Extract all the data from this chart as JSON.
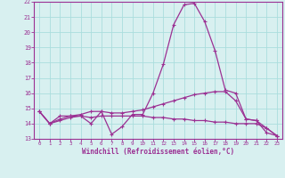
{
  "x_values": [
    0,
    1,
    2,
    3,
    4,
    5,
    6,
    7,
    8,
    9,
    10,
    11,
    12,
    13,
    14,
    15,
    16,
    17,
    18,
    19,
    20,
    21,
    22,
    23
  ],
  "line1": [
    14.8,
    14.0,
    14.5,
    14.5,
    14.5,
    14.0,
    14.8,
    13.3,
    13.8,
    14.6,
    14.6,
    16.0,
    17.9,
    20.5,
    21.8,
    21.9,
    20.7,
    18.8,
    16.2,
    16.0,
    14.3,
    14.2,
    13.4,
    13.2
  ],
  "line2": [
    14.8,
    14.0,
    14.3,
    14.5,
    14.6,
    14.8,
    14.8,
    14.7,
    14.7,
    14.8,
    14.9,
    15.1,
    15.3,
    15.5,
    15.7,
    15.9,
    16.0,
    16.1,
    16.1,
    15.5,
    14.3,
    14.2,
    13.7,
    13.2
  ],
  "line3": [
    14.8,
    14.0,
    14.2,
    14.4,
    14.5,
    14.4,
    14.5,
    14.5,
    14.5,
    14.5,
    14.5,
    14.4,
    14.4,
    14.3,
    14.3,
    14.2,
    14.2,
    14.1,
    14.1,
    14.0,
    14.0,
    14.0,
    13.7,
    13.2
  ],
  "color": "#9b3093",
  "bg_color": "#d8f0f0",
  "grid_color": "#aadddd",
  "xlabel": "Windchill (Refroidissement éolien,°C)",
  "xlim": [
    -0.5,
    23.5
  ],
  "ylim": [
    13,
    22
  ],
  "yticks": [
    13,
    14,
    15,
    16,
    17,
    18,
    19,
    20,
    21,
    22
  ],
  "xticks": [
    0,
    1,
    2,
    3,
    4,
    5,
    6,
    7,
    8,
    9,
    10,
    11,
    12,
    13,
    14,
    15,
    16,
    17,
    18,
    19,
    20,
    21,
    22,
    23
  ],
  "xtick_labels": [
    "0",
    "1",
    "2",
    "3",
    "4",
    "5",
    "6",
    "7",
    "8",
    "9",
    "10",
    "11",
    "12",
    "13",
    "14",
    "15",
    "16",
    "17",
    "18",
    "19",
    "20",
    "21",
    "22",
    "23"
  ]
}
